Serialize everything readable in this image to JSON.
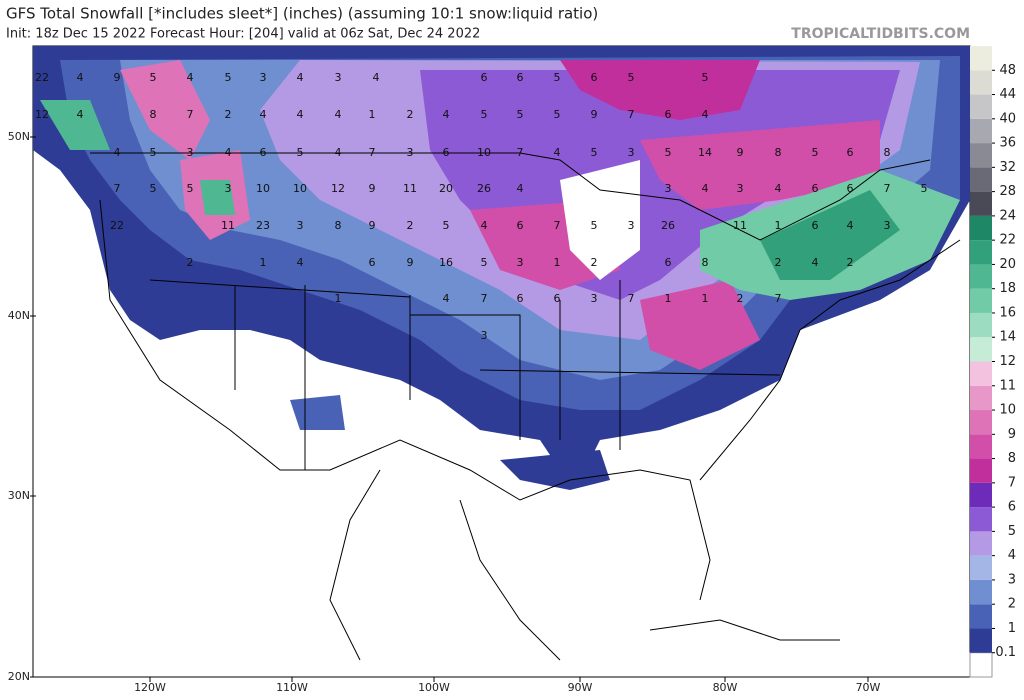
{
  "header": {
    "title": "GFS Total Snowfall [*includes sleet*] (inches) (assuming 10:1 snow:liquid ratio)",
    "subtitle": "Init: 18z Dec 15 2022   Forecast Hour: [204]   valid at 06z Sat, Dec 24 2022",
    "watermark": "TROPICALTIDBITS.COM"
  },
  "lat_labels": [
    "50N",
    "40N",
    "30N",
    "20N"
  ],
  "lon_labels": [
    "120W",
    "110W",
    "100W",
    "90W",
    "80W",
    "70W"
  ],
  "colorbar": {
    "levels": [
      0.1,
      1,
      2,
      3,
      4,
      5,
      6,
      7,
      8,
      9,
      10,
      11,
      12,
      14,
      16,
      18,
      20,
      22,
      24,
      28,
      32,
      36,
      40,
      44,
      48
    ],
    "colors": [
      "#2e3c96",
      "#4a62b6",
      "#6f8fd1",
      "#a4b6e6",
      "#b49ae4",
      "#8d5ad6",
      "#6c2bb8",
      "#c02f9c",
      "#d14fa8",
      "#de73b8",
      "#e898c8",
      "#f2c2de",
      "#c6ecd8",
      "#9cdcc0",
      "#72cba7",
      "#4fb892",
      "#33a07c",
      "#1e8866",
      "#4a4a56",
      "#6a6a76",
      "#8a8a94",
      "#a8a8b0",
      "#c6c6c8",
      "#dcdcd4"
    ],
    "below_color": "#ffffff",
    "above_color": "#ececdf"
  },
  "map_labels": [
    22,
    4,
    9,
    5,
    4,
    5,
    3,
    4,
    3,
    4,
    6,
    6,
    5,
    6,
    5,
    5,
    12,
    4,
    8,
    7,
    2,
    4,
    4,
    4,
    1,
    2,
    4,
    5,
    5,
    5,
    9,
    7,
    6,
    4,
    4,
    5,
    3,
    4,
    6,
    5,
    4,
    7,
    3,
    6,
    10,
    7,
    4,
    5,
    3,
    5,
    14,
    9,
    8,
    5,
    6,
    8,
    7,
    5,
    5,
    3,
    10,
    10,
    12,
    9,
    11,
    20,
    26,
    4,
    3,
    4,
    3,
    4,
    6,
    6,
    7,
    5,
    22,
    11,
    23,
    3,
    8,
    9,
    2,
    5,
    4,
    6,
    7,
    5,
    3,
    26,
    11,
    1,
    6,
    4,
    3,
    2,
    1,
    4,
    6,
    9,
    16,
    5,
    3,
    1,
    2,
    6,
    8,
    2,
    4,
    2,
    1,
    4,
    7,
    6,
    6,
    3,
    7,
    1,
    1,
    2,
    7,
    3
  ]
}
